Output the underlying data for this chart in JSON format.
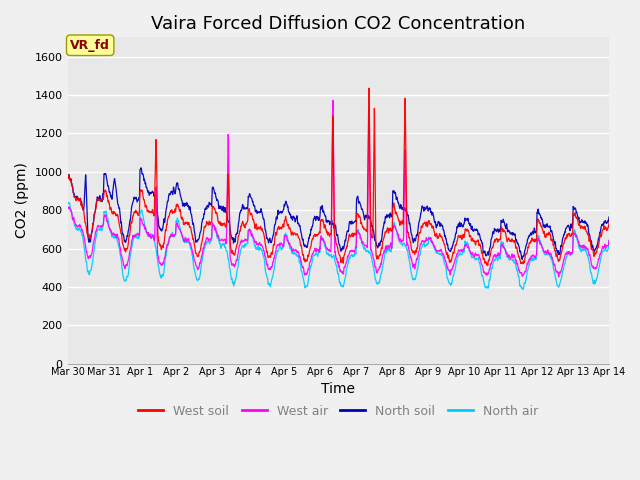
{
  "title": "Vaira Forced Diffusion CO2 Concentration",
  "xlabel": "Time",
  "ylabel": "CO2 (ppm)",
  "ylim": [
    0,
    1700
  ],
  "yticks": [
    0,
    200,
    400,
    600,
    800,
    1000,
    1200,
    1400,
    1600
  ],
  "xtick_labels": [
    "Mar 30",
    "Mar 31",
    "Apr 1",
    "Apr 2",
    "Apr 3",
    "Apr 4",
    "Apr 5",
    "Apr 6",
    "Apr 7",
    "Apr 8",
    "Apr 9",
    "Apr 10",
    "Apr 11",
    "Apr 12",
    "Apr 13",
    "Apr 14"
  ],
  "legend_label_color": "#808080",
  "colors": {
    "west_soil": "#FF0000",
    "west_air": "#FF00FF",
    "north_soil": "#0000BB",
    "north_air": "#00CCFF"
  },
  "annotation_text": "VR_fd",
  "annotation_color": "#8B0000",
  "annotation_bg": "#FFFF99",
  "bg_color": "#E8E8E8",
  "grid_color": "#FFFFFF",
  "title_fontsize": 13,
  "label_fontsize": 10,
  "tick_fontsize": 8,
  "figwidth": 6.4,
  "figheight": 4.8,
  "dpi": 100
}
